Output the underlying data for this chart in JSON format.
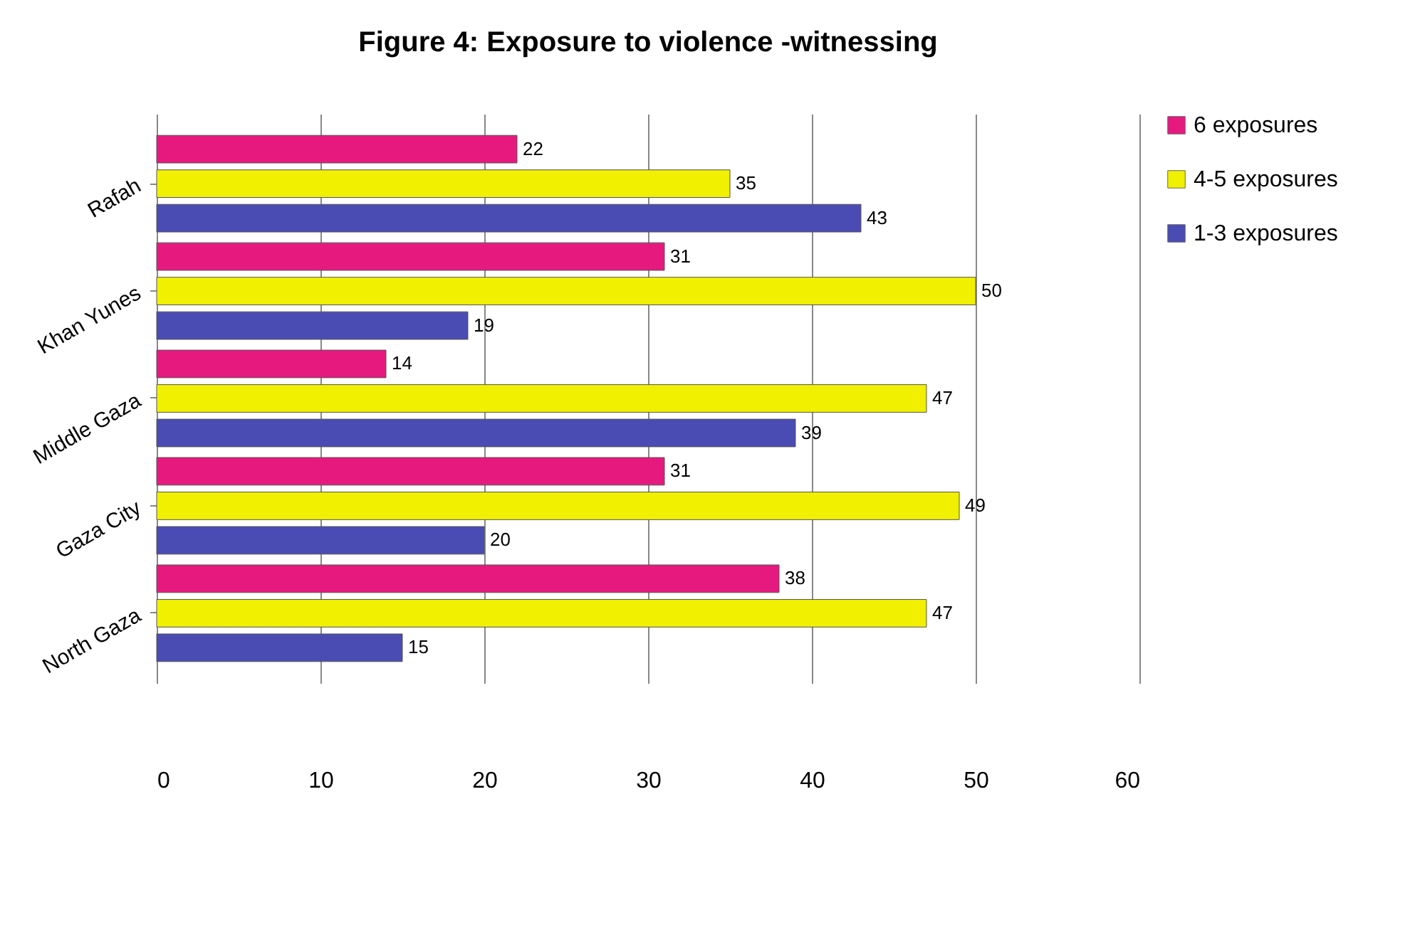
{
  "chart_data": {
    "type": "bar",
    "orientation": "horizontal",
    "title": "Figure 4: Exposure to violence -witnessing",
    "categories": [
      "Rafah",
      "Khan Yunes",
      "Middle Gaza",
      "Gaza City",
      "North Gaza"
    ],
    "series": [
      {
        "name": "6 exposures",
        "color": "#e6197f",
        "values": [
          22,
          31,
          14,
          31,
          38
        ]
      },
      {
        "name": "4-5 exposures",
        "color": "#f0f000",
        "values": [
          35,
          50,
          47,
          49,
          47
        ]
      },
      {
        "name": "1-3 exposures",
        "color": "#4b4bb4",
        "values": [
          43,
          19,
          39,
          20,
          15
        ]
      }
    ],
    "xlim": [
      0,
      60
    ],
    "xticks": [
      0,
      10,
      20,
      30,
      40,
      50,
      60
    ],
    "grid": "x",
    "legend": "right",
    "data_labels": true
  }
}
